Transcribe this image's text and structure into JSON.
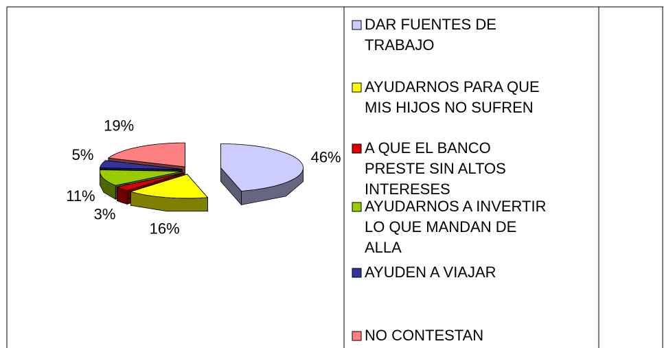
{
  "chart_data": {
    "type": "pie3d",
    "categories": [
      "DAR FUENTES DE TRABAJO",
      "AYUDARNOS PARA QUE MIS HIJOS NO SUFREN",
      "A QUE EL BANCO PRESTE SIN ALTOS INTERESES",
      "AYUDARNOS A INVERTIR LO QUE MANDAN DE ALLA",
      "AYUDEN A VIAJAR",
      "NO CONTESTAN"
    ],
    "legend_lines": [
      [
        "DAR FUENTES DE",
        "TRABAJO"
      ],
      [
        "AYUDARNOS PARA QUE",
        "MIS HIJOS NO SUFREN"
      ],
      [
        "A QUE EL BANCO",
        "PRESTE SIN ALTOS",
        "INTERESES"
      ],
      [
        "AYUDARNOS A INVERTIR",
        "LO QUE MANDAN DE",
        "ALLA"
      ],
      [
        "AYUDEN A VIAJAR"
      ],
      [
        "NO CONTESTAN"
      ]
    ],
    "values": [
      46,
      16,
      3,
      11,
      5,
      19
    ],
    "value_labels": [
      "46%",
      "16%",
      "3%",
      "11%",
      "5%",
      "19%"
    ],
    "colors": [
      "#ccccff",
      "#ffff00",
      "#dd0000",
      "#99cc00",
      "#333399",
      "#ff8080"
    ],
    "legend": "right"
  }
}
